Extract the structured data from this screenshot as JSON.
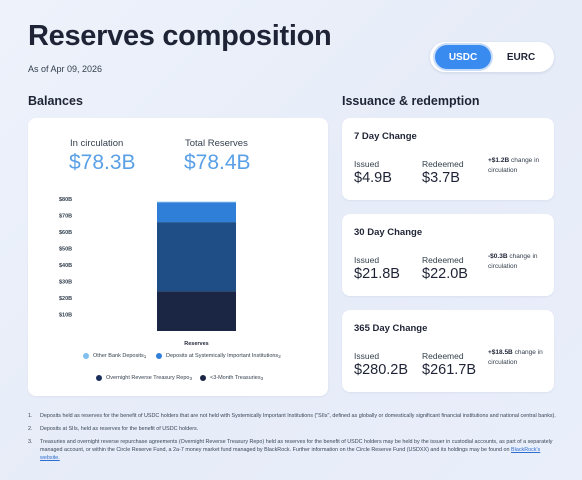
{
  "header": {
    "title": "Reserves composition",
    "as_of": "As of Apr 09, 2026"
  },
  "toggle": {
    "options": [
      "USDC",
      "EURC"
    ],
    "active": "USDC"
  },
  "balances": {
    "heading": "Balances",
    "in_circulation_label": "In circulation",
    "in_circulation_value": "$78.3B",
    "total_reserves_label": "Total Reserves",
    "total_reserves_value": "$78.4B"
  },
  "chart_data": {
    "type": "bar",
    "stacked": true,
    "categories": [
      "Reserves"
    ],
    "ylim": [
      0,
      80
    ],
    "ytick_labels": [
      "$10B",
      "$20B",
      "$30B",
      "$40B",
      "$50B",
      "$60B",
      "$70B",
      "$80B"
    ],
    "ytick_values": [
      10,
      20,
      30,
      40,
      50,
      60,
      70,
      80
    ],
    "series": [
      {
        "name": "<3-Month Treasuries",
        "values": [
          24
        ],
        "color": "#1b2644"
      },
      {
        "name": "Overnight Reverse Treasury Repo",
        "values": [
          42
        ],
        "color": "#1f4e87"
      },
      {
        "name": "Deposits at Systemically Important Institutions",
        "values": [
          12
        ],
        "color": "#2f7ed8"
      },
      {
        "name": "Other Bank Deposits",
        "values": [
          0.4
        ],
        "color": "#7fc0ef"
      }
    ],
    "grid": false,
    "legend": [
      {
        "label": "Other Bank Deposits",
        "sup": "1",
        "color": "#7fc0ef"
      },
      {
        "label": "Deposits at Systemically Important Institutions",
        "sup": "2",
        "color": "#2f7ed8"
      },
      {
        "label": "Overnight Reverse Treasury Repo",
        "sup": "3",
        "color": "#1b2f5c"
      },
      {
        "label": "<3-Month Treasuries",
        "sup": "3",
        "color": "#1b2644"
      }
    ]
  },
  "issuance": {
    "heading": "Issuance & redemption",
    "issued_label": "Issued",
    "redeemed_label": "Redeemed",
    "cards": [
      {
        "title": "7 Day Change",
        "issued": "$4.9B",
        "redeemed": "$3.7B",
        "change": "+$1.2B",
        "change_text": "change in circulation"
      },
      {
        "title": "30 Day Change",
        "issued": "$21.8B",
        "redeemed": "$22.0B",
        "change": "-$0.3B",
        "change_text": "change in circulation"
      },
      {
        "title": "365 Day Change",
        "issued": "$280.2B",
        "redeemed": "$261.7B",
        "change": "+$18.5B",
        "change_text": "change in circulation"
      }
    ]
  },
  "footnotes": [
    {
      "num": "1.",
      "text": "Deposits held as reserves for the benefit of USDC holders that are not held with Systemically Important Institutions (\"SIIs\", defined as globally or domestically significant financial institutions and national central banks)."
    },
    {
      "num": "2.",
      "text": "Deposits at SIIs, held as reserves for the benefit of USDC holders."
    },
    {
      "num": "3.",
      "text": "Treasuries and overnight reverse repurchase agreements (Overnight Reverse Treasury Repo) held as reserves for the benefit of USDC holders may be held by the issuer in custodial accounts, as part of a separately managed account, or within the Circle Reserve Fund, a 2a-7 money market fund managed by BlackRock. Further information on the Circle Reserve Fund (USDXX) and its holdings may be found on",
      "link": "BlackRock's website."
    }
  ]
}
